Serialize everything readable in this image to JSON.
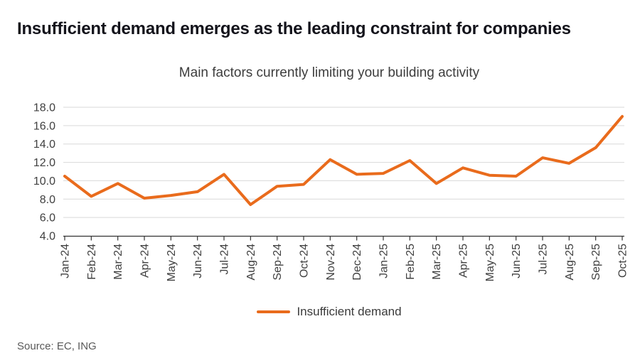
{
  "header": {
    "title": "Insufficient demand emerges as the leading constraint for companies"
  },
  "footer": {
    "source": "Source: EC, ING"
  },
  "colors": {
    "accent_orange": "#E96B1C",
    "title_text": "#13131b",
    "subtitle_text": "#3d3d3d",
    "axis_line": "#333333",
    "tick_label": "#404040",
    "gridline": "#d9d9d9",
    "source_text": "#595959"
  },
  "chart_data": {
    "type": "line",
    "title": "Main factors currently limiting your building activity",
    "xlabel": "",
    "ylabel": "",
    "categories": [
      "Jan-24",
      "Feb-24",
      "Mar-24",
      "Apr-24",
      "May-24",
      "Jun-24",
      "Jul-24",
      "Aug-24",
      "Sep-24",
      "Oct-24",
      "Nov-24",
      "Dec-24",
      "Jan-25",
      "Feb-25",
      "Mar-25",
      "Apr-25",
      "May-25",
      "Jun-25",
      "Jul-25",
      "Aug-25",
      "Sep-25",
      "Oct-25"
    ],
    "series": [
      {
        "name": "Insufficient demand",
        "color": "#E96B1C",
        "values": [
          10.5,
          8.3,
          9.7,
          8.1,
          8.4,
          8.8,
          10.7,
          7.4,
          9.4,
          9.6,
          12.3,
          10.7,
          10.8,
          12.2,
          9.7,
          11.4,
          10.6,
          10.5,
          12.5,
          11.9,
          13.6,
          17.0
        ]
      }
    ],
    "ylim": [
      4.0,
      18.0
    ],
    "ytick_interval": 2.0,
    "ytick_labels": [
      "4.0",
      "6.0",
      "8.0",
      "10.0",
      "12.0",
      "14.0",
      "16.0",
      "18.0"
    ],
    "grid": "horizontal",
    "legend_position": "bottom"
  }
}
